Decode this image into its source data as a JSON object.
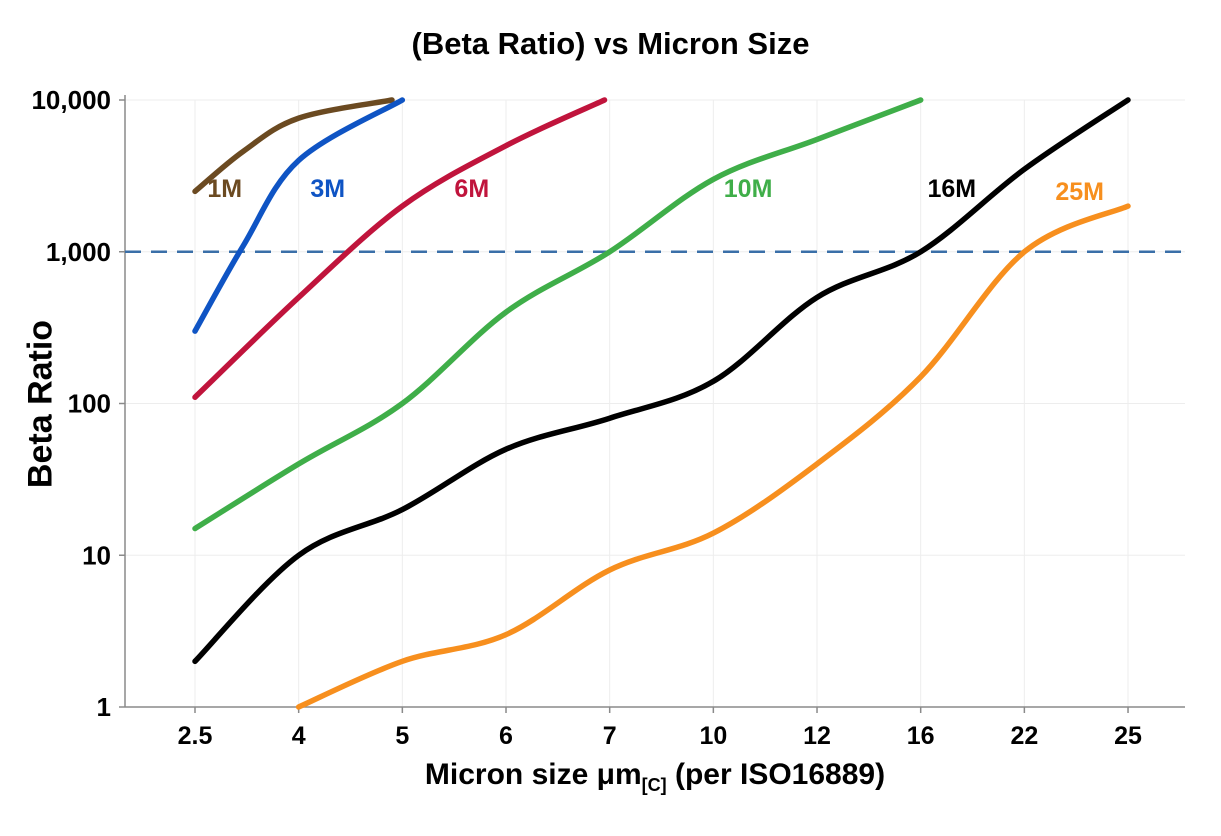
{
  "chart_data": {
    "type": "line",
    "title": "(Beta Ratio) vs Micron Size",
    "ylabel": "Beta Ratio",
    "xlabel_parts": {
      "prefix": "Micron size μm",
      "sub": "[C]",
      "suffix": " (per ISO16889)"
    },
    "x_scale": "categorical-equal-spacing",
    "y_scale": "log10",
    "ylim": [
      1,
      10000
    ],
    "x_ticks": [
      2.5,
      4,
      5,
      6,
      7,
      10,
      12,
      16,
      22,
      25
    ],
    "x_tick_labels": [
      "2.5",
      "4",
      "5",
      "6",
      "7",
      "10",
      "12",
      "16",
      "22",
      "25"
    ],
    "y_ticks": [
      1,
      10,
      100,
      1000,
      10000
    ],
    "y_tick_labels": [
      "1",
      "10",
      "100",
      "1,000",
      "10,000"
    ],
    "grid": "light",
    "legend_position": "inline-labels",
    "reference_line": {
      "y": 1000,
      "style": "dashed",
      "color": "#3a6fa8"
    },
    "colors": {
      "axis": "#8a8a8a",
      "grid": "#ededed",
      "tick_text": "#000000"
    },
    "series": [
      {
        "name": "1M",
        "color": "#6b4a21",
        "label": {
          "x": 2.93,
          "y": 2300
        },
        "points": [
          [
            2.5,
            2500
          ],
          [
            3.2,
            4600
          ],
          [
            4,
            7600
          ],
          [
            4.9,
            10000
          ]
        ]
      },
      {
        "name": "3M",
        "color": "#0f54c4",
        "label": {
          "x": 4.28,
          "y": 2300
        },
        "points": [
          [
            2.5,
            300
          ],
          [
            3.2,
            1100
          ],
          [
            4,
            4000
          ],
          [
            5,
            10000
          ]
        ]
      },
      {
        "name": "6M",
        "color": "#c0143c",
        "label": {
          "x": 5.67,
          "y": 2300
        },
        "points": [
          [
            2.5,
            110
          ],
          [
            4,
            500
          ],
          [
            5,
            2000
          ],
          [
            6,
            5000
          ],
          [
            6.95,
            10000
          ]
        ]
      },
      {
        "name": "10M",
        "color": "#3fae49",
        "label": {
          "x": 10.67,
          "y": 2300
        },
        "points": [
          [
            2.5,
            15
          ],
          [
            4,
            40
          ],
          [
            5,
            100
          ],
          [
            6,
            400
          ],
          [
            7,
            1000
          ],
          [
            10,
            3000
          ],
          [
            12,
            5500
          ],
          [
            16,
            10000
          ]
        ]
      },
      {
        "name": "16M",
        "color": "#000000",
        "label": {
          "x": 17.8,
          "y": 2300
        },
        "points": [
          [
            2.5,
            2
          ],
          [
            4,
            10
          ],
          [
            5,
            20
          ],
          [
            6,
            50
          ],
          [
            7,
            80
          ],
          [
            10,
            140
          ],
          [
            12,
            500
          ],
          [
            16,
            1000
          ],
          [
            22,
            3500
          ],
          [
            25,
            10000
          ]
        ]
      },
      {
        "name": "25M",
        "color": "#f78f1e",
        "label": {
          "x": 23.6,
          "y": 2200
        },
        "points": [
          [
            4,
            1
          ],
          [
            5,
            2
          ],
          [
            6,
            3
          ],
          [
            7,
            8
          ],
          [
            10,
            14
          ],
          [
            12,
            40
          ],
          [
            16,
            150
          ],
          [
            22,
            1000
          ],
          [
            25,
            2000
          ]
        ]
      }
    ]
  }
}
